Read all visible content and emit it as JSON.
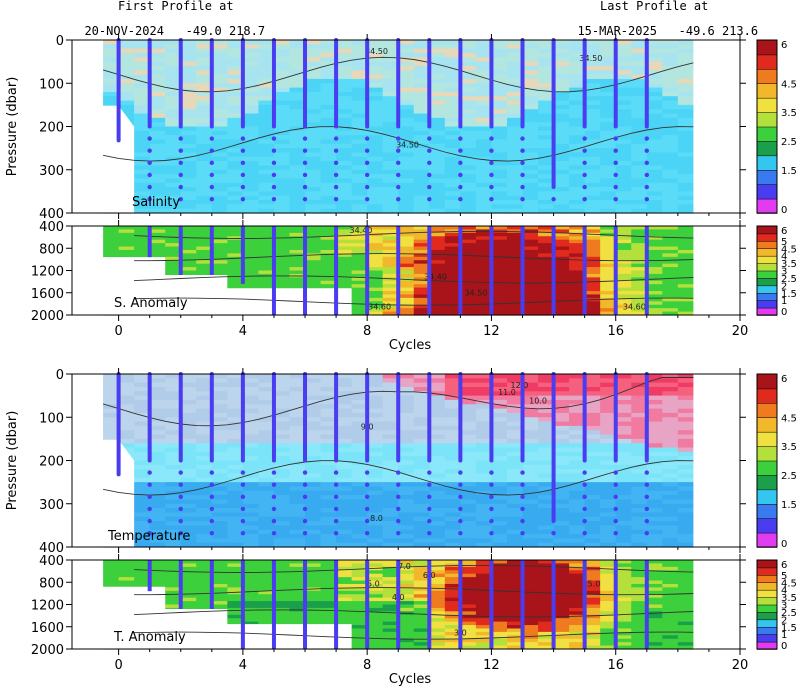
{
  "header": {
    "first_label": "First Profile at",
    "first_date": "20-NOV-2024",
    "first_lat": "-49.0",
    "first_lon": "218.7",
    "last_label": "Last Profile at",
    "last_date": "15-MAR-2025",
    "last_lat": "-49.6",
    "last_lon": "213.6"
  },
  "colors": {
    "profile_marker": "#4a3cf0",
    "contour": "#333333",
    "colorbar": [
      "#e23cf0",
      "#4a3cf0",
      "#3a7af0",
      "#33c7f0",
      "#1aa04a",
      "#3cd03c",
      "#b4e03c",
      "#f0e040",
      "#f0b82a",
      "#f07a1e",
      "#e02a1e",
      "#a8141a"
    ]
  },
  "chart_data": [
    {
      "type": "heatmap",
      "panel": "Salinity",
      "title": "Salinity",
      "xlabel": "Cycles",
      "ylabel": "Pressure (dbar)",
      "xlim": [
        -1.5,
        20
      ],
      "ylim": [
        0,
        400
      ],
      "x_ticks": [
        "0",
        "4",
        "8",
        "12",
        "16",
        "20"
      ],
      "y_ticks": [
        "0",
        "100",
        "200",
        "300",
        "400"
      ],
      "colorbar_ticks": [
        "0",
        "1.5",
        "2.5",
        "3.5",
        "4.5",
        "6"
      ],
      "contour_labels": [
        "34.50",
        "34.50",
        "34.50"
      ],
      "profile_cycles": [
        0,
        1,
        2,
        3,
        4,
        5,
        6,
        7,
        8,
        9,
        10,
        11,
        12,
        13,
        14,
        15,
        16,
        17
      ]
    },
    {
      "type": "heatmap",
      "panel": "S. Anomaly",
      "title": "S. Anomaly",
      "xlabel": "Cycles",
      "ylabel": "",
      "xlim": [
        -1.5,
        20
      ],
      "ylim": [
        400,
        2000
      ],
      "x_ticks": [
        "0",
        "4",
        "8",
        "12",
        "16",
        "20"
      ],
      "y_ticks": [
        "400",
        "800",
        "1200",
        "1600",
        "2000"
      ],
      "colorbar_ticks": [
        "0",
        "1",
        "1.5",
        "2",
        "2.5",
        "3",
        "3.5",
        "4",
        "4.5",
        "5",
        "6"
      ],
      "contour_labels": [
        "34.40",
        "34.40",
        "34.50",
        "34.60",
        "34.60"
      ]
    },
    {
      "type": "heatmap",
      "panel": "Temperature",
      "title": "Temperature",
      "xlabel": "Cycles",
      "ylabel": "Pressure (dbar)",
      "xlim": [
        -1.5,
        20
      ],
      "ylim": [
        0,
        400
      ],
      "x_ticks": [
        "0",
        "4",
        "8",
        "12",
        "16",
        "20"
      ],
      "y_ticks": [
        "0",
        "100",
        "200",
        "300",
        "400"
      ],
      "colorbar_ticks": [
        "0",
        "1.5",
        "2.5",
        "3.5",
        "4.5",
        "6"
      ],
      "contour_labels": [
        "12.0",
        "11.0",
        "10.0",
        "9.0",
        "8.0"
      ]
    },
    {
      "type": "heatmap",
      "panel": "T. Anomaly",
      "title": "T. Anomaly",
      "xlabel": "Cycles",
      "ylabel": "",
      "xlim": [
        -1.5,
        20
      ],
      "ylim": [
        400,
        2000
      ],
      "x_ticks": [
        "0",
        "4",
        "8",
        "12",
        "16",
        "20"
      ],
      "y_ticks": [
        "400",
        "800",
        "1200",
        "1600",
        "2000"
      ],
      "colorbar_ticks": [
        "0",
        "1",
        "1.5",
        "2",
        "2.5",
        "3",
        "3.5",
        "4",
        "4.5",
        "5",
        "6"
      ],
      "contour_labels": [
        "7.0",
        "6.0",
        "5.0",
        "4.0",
        "5.0",
        "3.0"
      ]
    }
  ]
}
